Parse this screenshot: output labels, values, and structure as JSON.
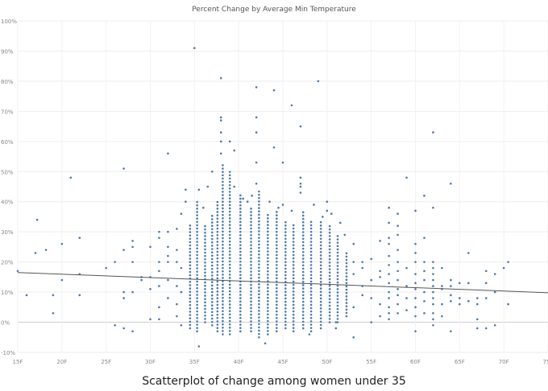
{
  "chart_data": {
    "type": "scatter",
    "title": "Percent Change by Average Min Temperature",
    "xlabel": "",
    "ylabel": "",
    "x_ticks": [
      "15F",
      "20F",
      "25F",
      "30F",
      "35F",
      "40F",
      "45F",
      "50F",
      "55F",
      "60F",
      "65F",
      "70F",
      "75F"
    ],
    "y_ticks": [
      "-10%",
      "0%",
      "10%",
      "20%",
      "30%",
      "40%",
      "50%",
      "60%",
      "70%",
      "80%",
      "90%",
      "100%"
    ],
    "xlim": [
      15,
      75
    ],
    "ylim": [
      -10,
      100
    ],
    "grid": true,
    "trend_line": {
      "x": [
        15,
        75
      ],
      "y": [
        16.5,
        9.8
      ]
    },
    "columns": [
      {
        "x": 34.5,
        "lo": -2,
        "hi": 33
      },
      {
        "x": 35.3,
        "lo": -3,
        "hi": 41
      },
      {
        "x": 36.2,
        "lo": 0,
        "hi": 33
      },
      {
        "x": 37.0,
        "lo": -1,
        "hi": 36
      },
      {
        "x": 37.6,
        "lo": -3,
        "hi": 40
      },
      {
        "x": 38.2,
        "lo": -4,
        "hi": 53
      },
      {
        "x": 39.0,
        "lo": -4,
        "hi": 50
      },
      {
        "x": 40.2,
        "lo": -3,
        "hi": 43
      },
      {
        "x": 41.4,
        "lo": -3,
        "hi": 38
      },
      {
        "x": 42.3,
        "lo": -5,
        "hi": 44
      },
      {
        "x": 43.3,
        "lo": -4,
        "hi": 36
      },
      {
        "x": 44.3,
        "lo": -3,
        "hi": 37
      },
      {
        "x": 45.3,
        "lo": -2,
        "hi": 34
      },
      {
        "x": 46.2,
        "lo": -3,
        "hi": 33
      },
      {
        "x": 47.3,
        "lo": -2,
        "hi": 37
      },
      {
        "x": 48.2,
        "lo": -3,
        "hi": 34
      },
      {
        "x": 49.3,
        "lo": -2,
        "hi": 34
      },
      {
        "x": 50.3,
        "lo": 0,
        "hi": 32
      },
      {
        "x": 51.2,
        "lo": 0,
        "hi": 29
      },
      {
        "x": 52.2,
        "lo": 2,
        "hi": 24
      }
    ],
    "points": [
      [
        15.0,
        17
      ],
      [
        16.0,
        9
      ],
      [
        17.0,
        23
      ],
      [
        17.2,
        34
      ],
      [
        18.2,
        24
      ],
      [
        19.0,
        3
      ],
      [
        19.0,
        9
      ],
      [
        20.0,
        14
      ],
      [
        20.0,
        26
      ],
      [
        21.0,
        48
      ],
      [
        22.0,
        28
      ],
      [
        22.0,
        16
      ],
      [
        22.0,
        9
      ],
      [
        25.0,
        18
      ],
      [
        26.0,
        -1
      ],
      [
        26.0,
        20
      ],
      [
        27.0,
        51
      ],
      [
        27.0,
        24
      ],
      [
        27.0,
        8
      ],
      [
        27.0,
        10
      ],
      [
        27.0,
        -2
      ],
      [
        28.0,
        27
      ],
      [
        28.0,
        25
      ],
      [
        28.0,
        20
      ],
      [
        28.0,
        10
      ],
      [
        28.0,
        -3
      ],
      [
        29.0,
        15
      ],
      [
        29.0,
        14
      ],
      [
        30.0,
        25
      ],
      [
        30.0,
        15
      ],
      [
        30.0,
        11
      ],
      [
        30.0,
        1
      ],
      [
        31.0,
        30
      ],
      [
        31.0,
        28
      ],
      [
        31.0,
        20
      ],
      [
        31.0,
        17
      ],
      [
        31.0,
        12
      ],
      [
        31.0,
        5
      ],
      [
        31.0,
        1
      ],
      [
        32.0,
        56
      ],
      [
        32.0,
        30
      ],
      [
        32.0,
        25
      ],
      [
        32.0,
        22
      ],
      [
        32.0,
        20
      ],
      [
        32.0,
        14
      ],
      [
        32.0,
        8
      ],
      [
        33.0,
        31
      ],
      [
        33.0,
        24
      ],
      [
        33.0,
        20
      ],
      [
        33.0,
        12
      ],
      [
        33.0,
        6
      ],
      [
        33.0,
        2
      ],
      [
        33.5,
        36
      ],
      [
        33.5,
        18
      ],
      [
        33.5,
        10
      ],
      [
        33.5,
        -1
      ],
      [
        35.0,
        91
      ],
      [
        34.0,
        44
      ],
      [
        34.0,
        40
      ],
      [
        35.5,
        -8
      ],
      [
        35.5,
        44
      ],
      [
        36.5,
        45
      ],
      [
        37.0,
        50
      ],
      [
        38.0,
        81
      ],
      [
        38.0,
        68
      ],
      [
        38.0,
        67
      ],
      [
        38.0,
        63
      ],
      [
        38.0,
        60
      ],
      [
        38.0,
        56
      ],
      [
        39.0,
        60
      ],
      [
        39.5,
        57
      ],
      [
        42.0,
        78
      ],
      [
        42.0,
        68
      ],
      [
        42.0,
        63
      ],
      [
        42.0,
        53
      ],
      [
        42.0,
        46
      ],
      [
        43.0,
        -7
      ],
      [
        44.0,
        77
      ],
      [
        44.0,
        58
      ],
      [
        45.0,
        53
      ],
      [
        46.0,
        72
      ],
      [
        47.0,
        65
      ],
      [
        47.0,
        48
      ],
      [
        47.0,
        46
      ],
      [
        47.0,
        45
      ],
      [
        47.0,
        43
      ],
      [
        48.0,
        -4
      ],
      [
        49.0,
        80
      ],
      [
        50.0,
        40
      ],
      [
        50.0,
        37
      ],
      [
        51.0,
        -2
      ],
      [
        51.0,
        0
      ],
      [
        52.0,
        29
      ],
      [
        53.0,
        26
      ],
      [
        53.0,
        20
      ],
      [
        53.0,
        16
      ],
      [
        53.0,
        5
      ],
      [
        53.0,
        -5
      ],
      [
        54.0,
        20
      ],
      [
        54.0,
        18
      ],
      [
        54.0,
        12
      ],
      [
        54.0,
        9
      ],
      [
        55.0,
        21
      ],
      [
        55.0,
        14
      ],
      [
        55.0,
        8
      ],
      [
        55.0,
        0
      ],
      [
        56.0,
        27
      ],
      [
        56.0,
        17
      ],
      [
        56.0,
        15
      ],
      [
        56.0,
        6
      ],
      [
        56.0,
        2
      ],
      [
        57.0,
        38
      ],
      [
        57.0,
        33
      ],
      [
        57.0,
        28
      ],
      [
        57.0,
        26
      ],
      [
        57.0,
        22
      ],
      [
        57.0,
        19
      ],
      [
        57.0,
        16
      ],
      [
        57.0,
        13
      ],
      [
        57.0,
        10
      ],
      [
        57.0,
        8
      ],
      [
        57.0,
        5
      ],
      [
        57.0,
        3
      ],
      [
        57.0,
        1
      ],
      [
        58.0,
        36
      ],
      [
        58.0,
        32
      ],
      [
        58.0,
        29
      ],
      [
        58.0,
        24
      ],
      [
        58.0,
        20
      ],
      [
        58.0,
        17
      ],
      [
        58.0,
        14
      ],
      [
        58.0,
        11
      ],
      [
        58.0,
        9
      ],
      [
        58.0,
        6
      ],
      [
        58.0,
        3
      ],
      [
        59.0,
        48
      ],
      [
        59.0,
        18
      ],
      [
        59.0,
        12
      ],
      [
        59.0,
        8
      ],
      [
        59.0,
        4
      ],
      [
        60.0,
        37
      ],
      [
        60.0,
        26
      ],
      [
        60.0,
        23
      ],
      [
        60.0,
        20
      ],
      [
        60.0,
        16
      ],
      [
        60.0,
        13
      ],
      [
        60.0,
        11
      ],
      [
        60.0,
        8
      ],
      [
        60.0,
        5
      ],
      [
        60.0,
        2
      ],
      [
        60.0,
        -3
      ],
      [
        61.0,
        42
      ],
      [
        61.0,
        28
      ],
      [
        61.0,
        20
      ],
      [
        61.0,
        17
      ],
      [
        61.0,
        14
      ],
      [
        61.0,
        10
      ],
      [
        61.0,
        7
      ],
      [
        61.0,
        3
      ],
      [
        62.0,
        63
      ],
      [
        62.0,
        38
      ],
      [
        62.0,
        20
      ],
      [
        62.0,
        18
      ],
      [
        62.0,
        16
      ],
      [
        62.0,
        14
      ],
      [
        62.0,
        12
      ],
      [
        62.0,
        10
      ],
      [
        62.0,
        8
      ],
      [
        62.0,
        6
      ],
      [
        62.0,
        3
      ],
      [
        62.0,
        1
      ],
      [
        62.0,
        -1
      ],
      [
        63.0,
        18
      ],
      [
        63.0,
        12
      ],
      [
        63.0,
        11
      ],
      [
        63.0,
        6
      ],
      [
        63.0,
        2
      ],
      [
        64.0,
        46
      ],
      [
        64.0,
        14
      ],
      [
        64.0,
        12
      ],
      [
        64.0,
        9
      ],
      [
        64.0,
        7
      ],
      [
        64.0,
        -3
      ],
      [
        65.0,
        13
      ],
      [
        65.0,
        8
      ],
      [
        65.0,
        6
      ],
      [
        66.0,
        23
      ],
      [
        66.0,
        13
      ],
      [
        66.0,
        7
      ],
      [
        67.0,
        8
      ],
      [
        67.0,
        6
      ],
      [
        67.0,
        1
      ],
      [
        67.0,
        -2
      ],
      [
        68.0,
        17
      ],
      [
        68.0,
        13
      ],
      [
        68.0,
        8
      ],
      [
        68.0,
        -2
      ],
      [
        69.0,
        16
      ],
      [
        69.0,
        10
      ],
      [
        69.0,
        -1
      ],
      [
        70.0,
        18
      ],
      [
        70.5,
        20
      ],
      [
        70.5,
        6
      ],
      [
        34.5,
        20
      ],
      [
        36.0,
        38
      ],
      [
        39.5,
        45
      ],
      [
        40.5,
        41
      ],
      [
        41.0,
        40
      ],
      [
        41.5,
        42
      ],
      [
        43.5,
        40
      ],
      [
        44.5,
        38
      ],
      [
        45.0,
        39
      ],
      [
        46.0,
        37
      ],
      [
        48.5,
        39
      ],
      [
        49.5,
        35
      ],
      [
        50.5,
        36
      ],
      [
        51.5,
        33
      ]
    ]
  },
  "caption": "Scatterplot of change among women under 35"
}
